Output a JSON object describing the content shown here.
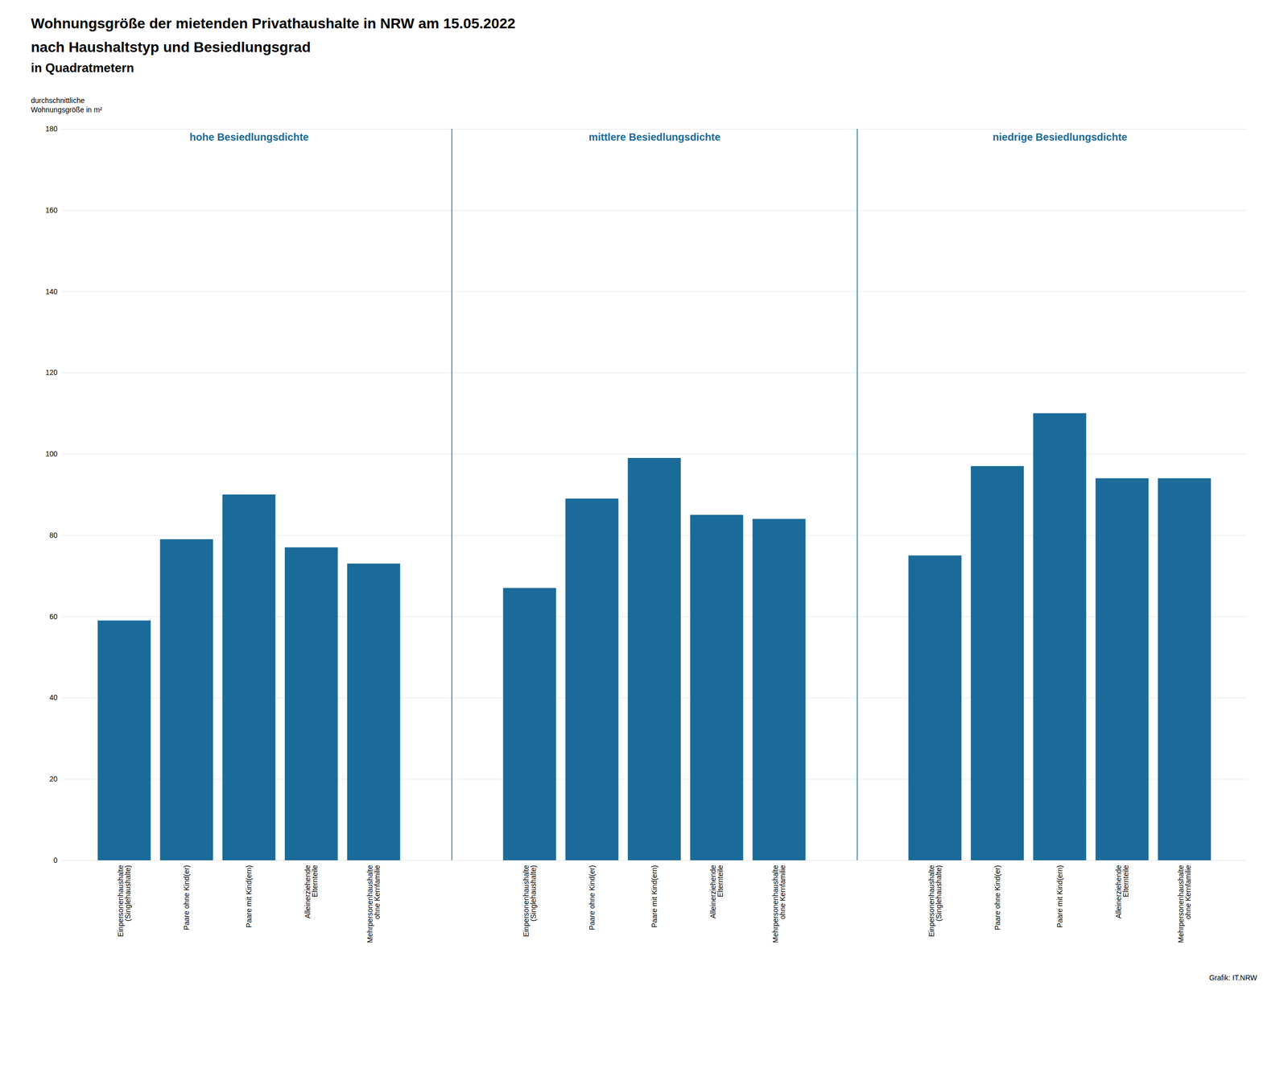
{
  "chart_data": {
    "type": "bar",
    "title": "Wohnungsgröße der mietenden Privathaushalte in NRW am 15.05.2022",
    "subtitle": [
      "nach Haushaltstyp und Besiedlungsgrad",
      "in Quadratmetern"
    ],
    "ylabel": "durchschnittliche\nWohnungsgröße in m²",
    "caption": "Grafik: IT.NRW",
    "categories": [
      "Einpersonenhaushalte\n(Singlehaushalte)",
      "Paare ohne Kind(er)",
      "Paare mit Kind(ern)",
      "Alleinerziehende\nElternteile",
      "Mehrpersonenhaushalte\nohne Kernfamilie"
    ],
    "groups": [
      {
        "name": "hohe Besiedlungsdichte",
        "values": [
          59,
          79,
          90,
          77,
          73
        ]
      },
      {
        "name": "mittlere Besiedlungsdichte",
        "values": [
          67,
          89,
          99,
          85,
          84
        ]
      },
      {
        "name": "niedrige Besiedlungsdichte",
        "values": [
          75,
          97,
          110,
          94,
          94
        ]
      }
    ],
    "color": "#1a6b9a",
    "ylim": [
      0,
      180
    ],
    "yticks": [
      0,
      20,
      40,
      60,
      80,
      100,
      120,
      140,
      160,
      180
    ],
    "grid": true
  }
}
